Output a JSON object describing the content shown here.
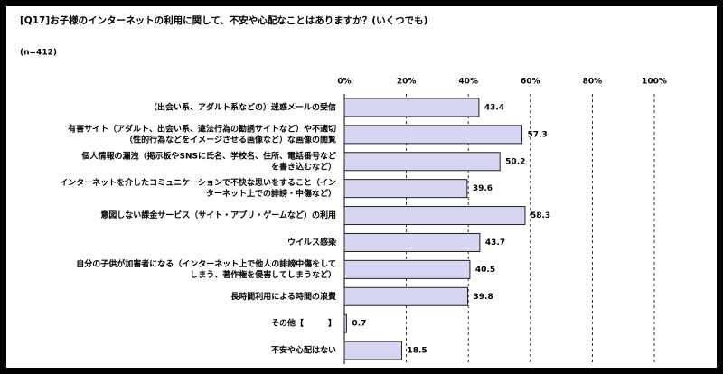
{
  "chart_data": {
    "type": "bar",
    "orientation": "horizontal",
    "title": "[Q17]お子様のインターネットの利用に関して、不安や心配なことはありますか？(いくつでも)",
    "subtitle": "(n=412)",
    "categories": [
      [
        "（出会い系、アダルト系などの）迷惑メールの受信"
      ],
      [
        "有害サイト（アダルト、出会い系、違法行為の勧誘サイトなど）や不適切",
        "（性的行為などをイメージさせる画像など）な画像の閲覧"
      ],
      [
        "個人情報の漏洩（掲示板やSNSに氏名、学校名、住所、電話番号など",
        "を書き込むなど）"
      ],
      [
        "インターネットを介したコミュニケーションで不快な思いをすること（イン",
        "ターネット上での誹謗・中傷など）"
      ],
      [
        "意図しない課金サービス（サイト・アプリ・ゲームなど）の利用"
      ],
      [
        "ウイルス感染"
      ],
      [
        "自分の子供が加害者になる（インターネット上で他人の誹謗中傷をして",
        "しまう、著作権を侵害してしまうなど）"
      ],
      [
        "長時間利用による時間の浪費"
      ],
      [
        "その他【　　　】"
      ],
      [
        "不安や心配はない"
      ]
    ],
    "values": [
      43.4,
      57.3,
      50.2,
      39.6,
      58.3,
      43.7,
      40.5,
      39.8,
      0.7,
      18.5
    ],
    "color": "#d6d6f2",
    "xlim": [
      0,
      100
    ],
    "xticks": [
      {
        "value": 0,
        "label": "0%"
      },
      {
        "value": 20,
        "label": "20%"
      },
      {
        "value": 40,
        "label": "40%"
      },
      {
        "value": 60,
        "label": "60%"
      },
      {
        "value": 80,
        "label": "80%"
      },
      {
        "value": 100,
        "label": "100%"
      }
    ],
    "grid": true
  }
}
